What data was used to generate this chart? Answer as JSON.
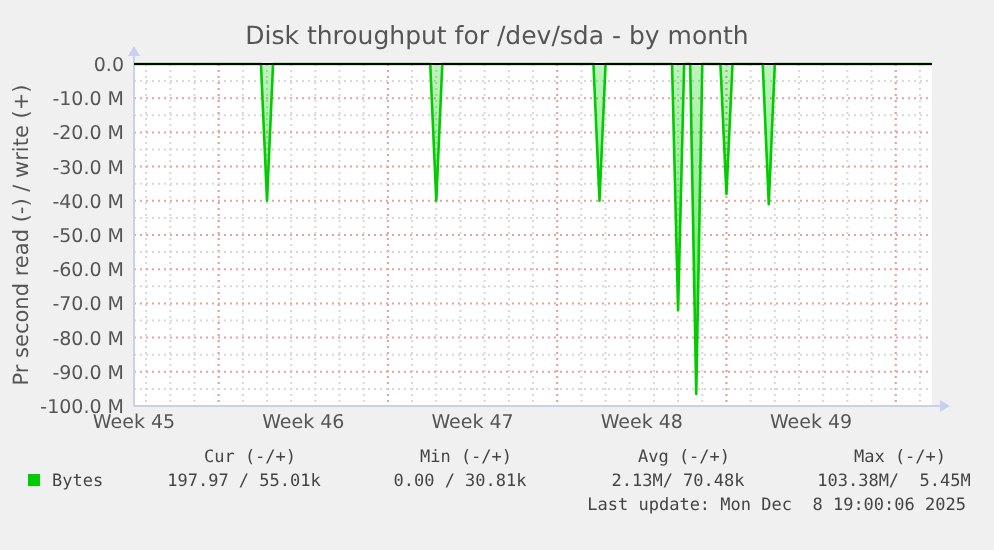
{
  "chart_data": {
    "type": "area",
    "title": "Disk throughput for /dev/sda - by month",
    "ylabel": "Pr second read (-) / write (+)",
    "categories": [
      "Week 45",
      null,
      null,
      null,
      null,
      null,
      null,
      null,
      null,
      null,
      null,
      null,
      null,
      null,
      null,
      null,
      null,
      null,
      null,
      null,
      null,
      null,
      null,
      null,
      null,
      null,
      null,
      null,
      "Week 46",
      null,
      null,
      null,
      null,
      null,
      null,
      null,
      null,
      null,
      null,
      null,
      null,
      null,
      null,
      null,
      null,
      null,
      null,
      null,
      null,
      null,
      null,
      null,
      null,
      null,
      null,
      null,
      "Week 47",
      null,
      null,
      null,
      null,
      null,
      null,
      null,
      null,
      null,
      null,
      null,
      null,
      null,
      null,
      null,
      null,
      null,
      null,
      null,
      null,
      null,
      null,
      null,
      null,
      null,
      null,
      null,
      "Week 48",
      null,
      null,
      null,
      null,
      null,
      null,
      null,
      null,
      null,
      null,
      null,
      null,
      null,
      null,
      null,
      null,
      null,
      null,
      null,
      null,
      null,
      null,
      null,
      null,
      null,
      null,
      null,
      "Week 49",
      null,
      null,
      null,
      null,
      null,
      null,
      null,
      null,
      null,
      null,
      null,
      null,
      null,
      null,
      null,
      null,
      null,
      null,
      null,
      null
    ],
    "ylim": [
      -100,
      0
    ],
    "yticks": [
      {
        "value": 0,
        "label": "0.0"
      },
      {
        "value": -10,
        "label": "-10.0 M"
      },
      {
        "value": -20,
        "label": "-20.0 M"
      },
      {
        "value": -30,
        "label": "-30.0 M"
      },
      {
        "value": -40,
        "label": "-40.0 M"
      },
      {
        "value": -50,
        "label": "-50.0 M"
      },
      {
        "value": -60,
        "label": "-60.0 M"
      },
      {
        "value": -70,
        "label": "-70.0 M"
      },
      {
        "value": -80,
        "label": "-80.0 M"
      },
      {
        "value": -90,
        "label": "-90.0 M"
      },
      {
        "value": -100,
        "label": "-100.0 M"
      }
    ],
    "grid": true,
    "legend": "bottom",
    "series": [
      {
        "name": "Bytes",
        "color": "#00cc00",
        "values": [
          0,
          0,
          0,
          0,
          0,
          0,
          0,
          0,
          0,
          0,
          0,
          0,
          0,
          0,
          0,
          0,
          0,
          0,
          0,
          0,
          0,
          0,
          -40,
          0,
          0,
          0,
          0,
          0,
          0,
          0,
          0,
          0,
          0,
          0,
          0,
          0,
          0,
          0,
          0,
          0,
          0,
          0,
          0,
          0,
          0,
          0,
          0,
          0,
          0,
          0,
          -40,
          0,
          0,
          0,
          0,
          0,
          0,
          0,
          0,
          0,
          0,
          0,
          0,
          0,
          0,
          0,
          0,
          0,
          0,
          0,
          0,
          0,
          0,
          0,
          0,
          0,
          0,
          -40,
          0,
          0,
          0,
          0,
          0,
          0,
          0,
          0,
          0,
          0,
          0,
          0,
          -72,
          0,
          0,
          -96.5,
          0,
          0,
          0,
          0,
          -38,
          0,
          0,
          0,
          0,
          0,
          0,
          -41,
          0,
          0,
          0,
          0,
          0,
          0,
          0,
          0,
          0,
          0,
          0,
          0,
          0,
          0,
          0,
          0,
          0,
          0,
          0,
          0,
          0,
          0,
          0,
          0,
          0,
          0,
          0
        ]
      }
    ],
    "annotations": [
      "Cur (-/+)",
      "Min (-/+)",
      "Avg (-/+)",
      "Max (-/+)",
      "197.97 / 55.01k",
      "0.00 / 30.81k",
      "2.13M/ 70.48k",
      "103.38M/  5.45M",
      "Last update: Mon Dec  8 19:00:06 2025"
    ]
  }
}
